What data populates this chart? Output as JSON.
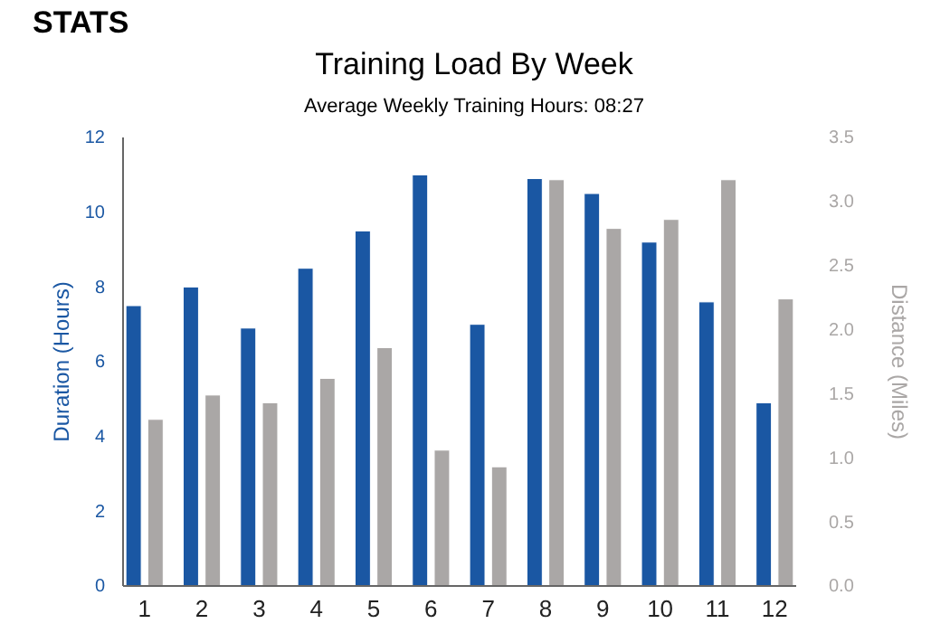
{
  "chart_data": {
    "type": "bar",
    "title": "Training Load By Week",
    "subtitle": "Average Weekly Training Hours: 08:27",
    "annotations": [
      "STATS"
    ],
    "ylabel": "Duration (Hours)",
    "y2label": "Distance (Miles)",
    "categories": [
      "1",
      "2",
      "3",
      "4",
      "5",
      "6",
      "7",
      "8",
      "9",
      "10",
      "11",
      "12"
    ],
    "series": [
      {
        "color": "#1a57a3",
        "values": [
          7.5,
          8.0,
          6.9,
          8.5,
          9.5,
          11.0,
          7.0,
          10.9,
          10.5,
          9.2,
          7.6,
          4.9
        ]
      },
      {
        "color": "#aaa7a6",
        "axis": "y2",
        "values": [
          1.3,
          1.49,
          1.43,
          1.62,
          1.86,
          1.06,
          0.93,
          3.17,
          2.79,
          2.86,
          3.17,
          2.24
        ]
      }
    ],
    "ylim": [
      0,
      12
    ],
    "yticks": [
      0,
      2,
      4,
      6,
      8,
      10,
      12
    ],
    "y2lim": [
      0,
      3.5
    ],
    "y2ticks": [
      {
        "value": 0,
        "label": "0.0"
      },
      {
        "value": 0.5,
        "label": "0.5"
      },
      {
        "value": 1,
        "label": "1.0"
      },
      {
        "value": 1.5,
        "label": "1.5"
      },
      {
        "value": 2,
        "label": "2.0"
      },
      {
        "value": 2.5,
        "label": "2.5"
      },
      {
        "value": 3,
        "label": "3.0"
      },
      {
        "value": 3.5,
        "label": "3.5"
      }
    ],
    "grid": false
  }
}
